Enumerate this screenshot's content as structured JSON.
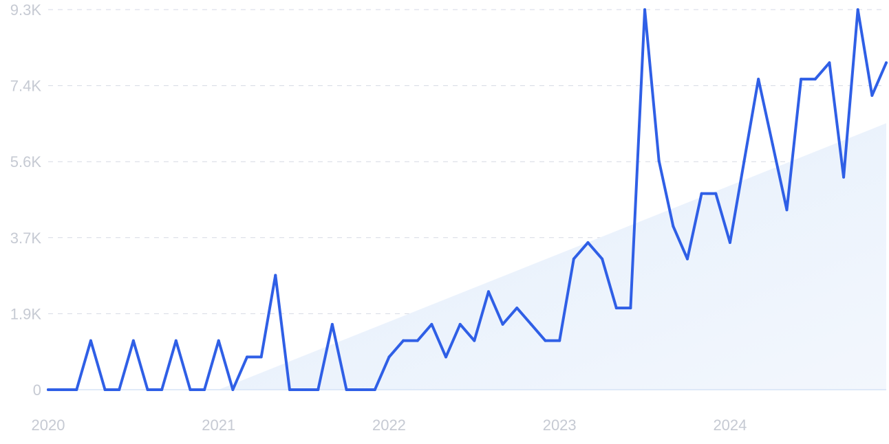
{
  "chart_data": {
    "type": "line",
    "x_start": "2020-01",
    "x_end": "2024-12",
    "x_unit": "month",
    "xlim": [
      "2020-01",
      "2024-12"
    ],
    "xticks": [
      "2020",
      "2021",
      "2022",
      "2023",
      "2024"
    ],
    "ylim": [
      0,
      9300
    ],
    "yticks": [
      {
        "value": 0,
        "label": "0"
      },
      {
        "value": 1860,
        "label": "1.9K"
      },
      {
        "value": 3720,
        "label": "3.7K"
      },
      {
        "value": 5580,
        "label": "5.6K"
      },
      {
        "value": 7440,
        "label": "7.4K"
      },
      {
        "value": 9300,
        "label": "9.3K"
      }
    ],
    "grid": true,
    "title": "",
    "xlabel": "",
    "ylabel": "",
    "colors": {
      "line": "#2f5fe6",
      "trend_fill": "#e3eefc",
      "tick_text": "#c6cad3",
      "grid": "#d5d9e4"
    },
    "series": [
      {
        "values": [
          0,
          0,
          0,
          1200,
          0,
          0,
          1200,
          0,
          0,
          1200,
          0,
          0,
          1200,
          0,
          800,
          800,
          2800,
          0,
          0,
          0,
          1600,
          0,
          0,
          0,
          800,
          1200,
          1200,
          1600,
          800,
          1600,
          1200,
          2400,
          1600,
          2000,
          1600,
          1200,
          1200,
          3200,
          3600,
          3200,
          2000,
          2000,
          9300,
          5600,
          4000,
          3200,
          4800,
          4800,
          3600,
          5600,
          7600,
          6000,
          4400,
          7600,
          7600,
          8000,
          5200,
          9300,
          7200,
          8000
        ]
      }
    ],
    "trend": {
      "start": 0,
      "end": 6520
    }
  }
}
